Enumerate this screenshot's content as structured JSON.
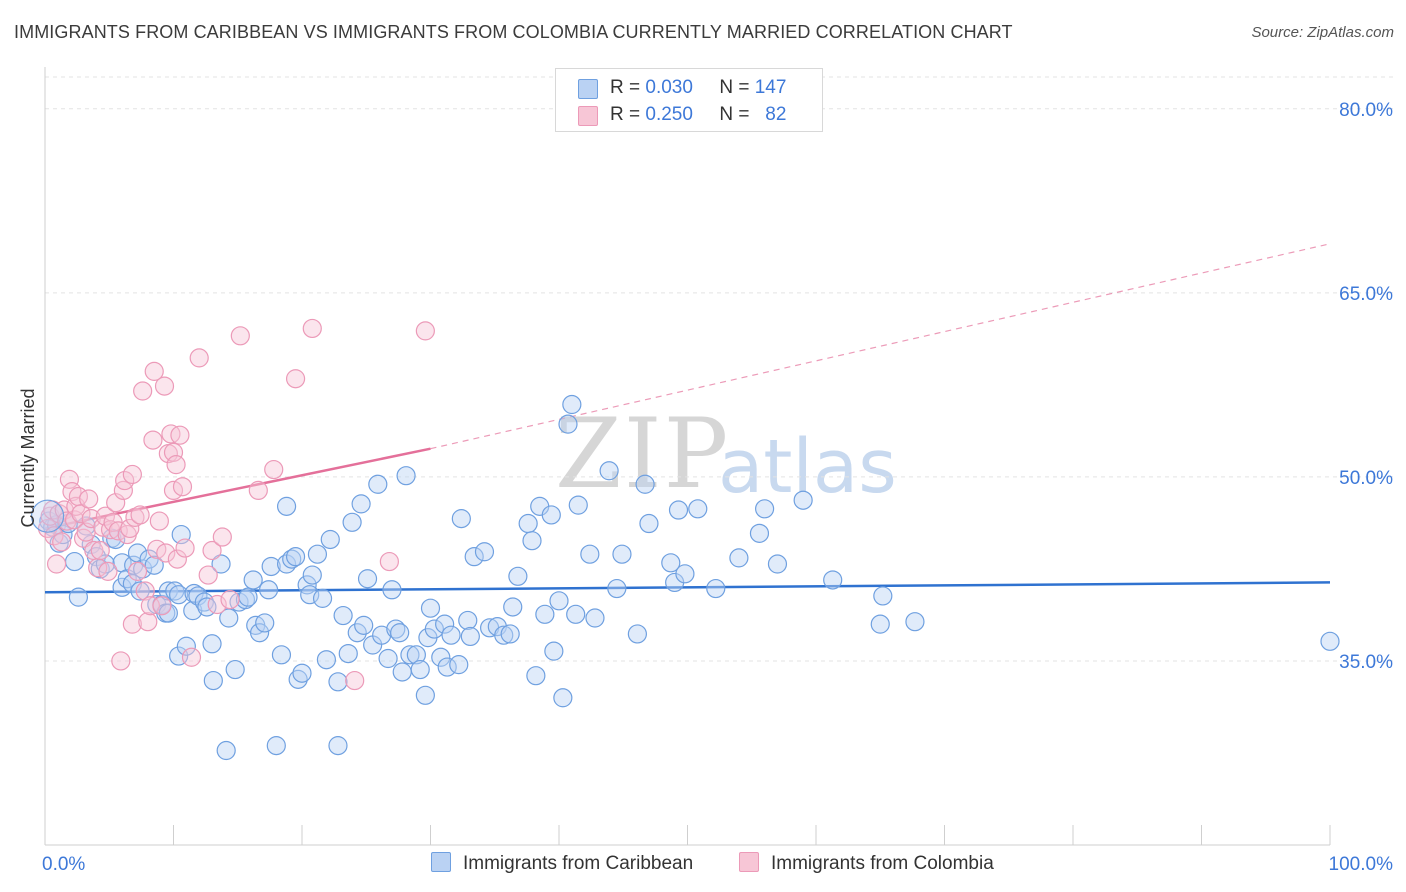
{
  "header": {
    "title": "IMMIGRANTS FROM CARIBBEAN VS IMMIGRANTS FROM COLOMBIA CURRENTLY MARRIED CORRELATION CHART",
    "source": "Source: ZipAtlas.com"
  },
  "watermark": {
    "zip": "ZIP",
    "atlas": "atlas"
  },
  "legend_top": [
    {
      "r_label": "R =",
      "r_value": "0.030",
      "n_label": "N =",
      "n_value": "147",
      "color": "#6fa0e0"
    },
    {
      "r_label": "R =",
      "r_value": "0.250",
      "n_label": "N =",
      "n_value": "82",
      "color": "#ef8fb0"
    }
  ],
  "colors": {
    "blue_fill": "#bad2f3",
    "blue_stroke": "#6fa0e0",
    "blue_line": "#2f72d0",
    "pink_fill": "#f7c6d6",
    "pink_stroke": "#ec9ab8",
    "pink_line": "#e4709a",
    "grid": "#e3e3e3",
    "tick_text": "#3d78d8"
  },
  "chart_data": {
    "type": "scatter",
    "title": "IMMIGRANTS FROM CARIBBEAN VS IMMIGRANTS FROM COLOMBIA CURRENTLY MARRIED CORRELATION CHART",
    "xlabel": "",
    "ylabel": "Currently Married",
    "x_tick_labels": [
      "0.0%",
      "100.0%"
    ],
    "y_tick_labels": [
      "35.0%",
      "50.0%",
      "65.0%",
      "80.0%"
    ],
    "y_ticks": [
      35,
      50,
      65,
      80
    ],
    "xlim": [
      0,
      100
    ],
    "ylim": [
      20,
      83
    ],
    "grid": true,
    "legend_position": "bottom",
    "series": [
      {
        "name": "Immigrants from Caribbean",
        "color": "#6fa0e0",
        "trend": {
          "x": [
            0,
            100
          ],
          "y": [
            40.6,
            41.4
          ],
          "dashed_extension": false
        },
        "points": [
          [
            0.3,
            46.4
          ],
          [
            0.6,
            45.9
          ],
          [
            0.9,
            46.1
          ],
          [
            1.1,
            44.6
          ],
          [
            1.4,
            45.3
          ],
          [
            1.8,
            46.2
          ],
          [
            2.3,
            43.1
          ],
          [
            2.6,
            40.2
          ],
          [
            3.2,
            46.0
          ],
          [
            3.6,
            44.5
          ],
          [
            4.0,
            43.5
          ],
          [
            4.3,
            42.5
          ],
          [
            4.7,
            42.9
          ],
          [
            5.2,
            45.0
          ],
          [
            5.5,
            44.9
          ],
          [
            6.0,
            43.0
          ],
          [
            6.0,
            41.0
          ],
          [
            6.4,
            41.7
          ],
          [
            6.8,
            41.3
          ],
          [
            6.9,
            42.8
          ],
          [
            7.2,
            43.8
          ],
          [
            7.4,
            40.7
          ],
          [
            7.6,
            42.5
          ],
          [
            8.1,
            43.3
          ],
          [
            8.5,
            42.8
          ],
          [
            8.7,
            39.6
          ],
          [
            9.1,
            39.6
          ],
          [
            9.4,
            38.9
          ],
          [
            9.6,
            38.9
          ],
          [
            9.6,
            40.7
          ],
          [
            10.1,
            40.7
          ],
          [
            10.4,
            40.4
          ],
          [
            10.4,
            35.4
          ],
          [
            10.6,
            45.3
          ],
          [
            11.0,
            36.2
          ],
          [
            11.5,
            39.1
          ],
          [
            11.6,
            40.5
          ],
          [
            11.9,
            40.3
          ],
          [
            12.4,
            39.8
          ],
          [
            12.6,
            39.4
          ],
          [
            13.0,
            36.4
          ],
          [
            13.1,
            33.4
          ],
          [
            13.7,
            42.9
          ],
          [
            14.1,
            27.7
          ],
          [
            14.3,
            38.5
          ],
          [
            14.8,
            34.3
          ],
          [
            15.1,
            39.8
          ],
          [
            15.6,
            40.0
          ],
          [
            15.8,
            40.2
          ],
          [
            16.2,
            41.6
          ],
          [
            16.4,
            37.9
          ],
          [
            16.7,
            37.3
          ],
          [
            17.1,
            38.1
          ],
          [
            17.4,
            40.8
          ],
          [
            17.6,
            42.7
          ],
          [
            18.0,
            28.1
          ],
          [
            18.4,
            35.5
          ],
          [
            18.8,
            47.6
          ],
          [
            18.8,
            42.9
          ],
          [
            19.2,
            43.3
          ],
          [
            19.5,
            43.5
          ],
          [
            19.7,
            33.5
          ],
          [
            20.0,
            34.0
          ],
          [
            20.4,
            41.2
          ],
          [
            20.6,
            40.4
          ],
          [
            20.8,
            42.0
          ],
          [
            21.2,
            43.7
          ],
          [
            21.6,
            40.1
          ],
          [
            21.9,
            35.1
          ],
          [
            22.2,
            44.9
          ],
          [
            22.8,
            28.1
          ],
          [
            22.8,
            33.3
          ],
          [
            23.2,
            38.7
          ],
          [
            23.6,
            35.6
          ],
          [
            23.9,
            46.3
          ],
          [
            24.3,
            37.3
          ],
          [
            24.6,
            47.8
          ],
          [
            24.8,
            37.9
          ],
          [
            25.1,
            41.7
          ],
          [
            25.5,
            36.3
          ],
          [
            25.9,
            49.4
          ],
          [
            26.2,
            37.1
          ],
          [
            26.7,
            35.2
          ],
          [
            27.0,
            40.8
          ],
          [
            27.3,
            37.6
          ],
          [
            27.6,
            37.3
          ],
          [
            27.8,
            34.1
          ],
          [
            28.1,
            50.1
          ],
          [
            28.4,
            35.5
          ],
          [
            28.9,
            35.5
          ],
          [
            29.2,
            34.3
          ],
          [
            29.6,
            32.2
          ],
          [
            29.8,
            36.9
          ],
          [
            30.0,
            39.3
          ],
          [
            30.3,
            37.6
          ],
          [
            30.8,
            35.3
          ],
          [
            31.1,
            38.0
          ],
          [
            31.3,
            34.5
          ],
          [
            31.6,
            37.1
          ],
          [
            32.2,
            34.7
          ],
          [
            32.4,
            46.6
          ],
          [
            32.9,
            38.3
          ],
          [
            33.1,
            37.0
          ],
          [
            33.4,
            43.5
          ],
          [
            34.2,
            43.9
          ],
          [
            34.6,
            37.7
          ],
          [
            35.2,
            37.8
          ],
          [
            35.7,
            37.1
          ],
          [
            36.2,
            37.2
          ],
          [
            36.4,
            39.4
          ],
          [
            36.8,
            41.9
          ],
          [
            37.6,
            46.2
          ],
          [
            37.9,
            44.8
          ],
          [
            38.2,
            33.8
          ],
          [
            38.5,
            47.6
          ],
          [
            38.9,
            38.8
          ],
          [
            39.4,
            46.9
          ],
          [
            39.6,
            35.8
          ],
          [
            40.0,
            39.9
          ],
          [
            40.3,
            32.0
          ],
          [
            40.7,
            54.3
          ],
          [
            41.0,
            55.9
          ],
          [
            41.3,
            38.8
          ],
          [
            41.5,
            47.7
          ],
          [
            42.4,
            43.7
          ],
          [
            42.8,
            38.5
          ],
          [
            43.9,
            50.5
          ],
          [
            44.5,
            40.9
          ],
          [
            44.9,
            43.7
          ],
          [
            46.1,
            37.2
          ],
          [
            46.7,
            49.4
          ],
          [
            47.0,
            46.2
          ],
          [
            48.7,
            43.0
          ],
          [
            49.0,
            41.4
          ],
          [
            49.3,
            47.3
          ],
          [
            49.8,
            42.1
          ],
          [
            50.8,
            47.4
          ],
          [
            52.2,
            40.9
          ],
          [
            54.0,
            43.4
          ],
          [
            55.6,
            45.4
          ],
          [
            56.0,
            47.4
          ],
          [
            57.0,
            42.9
          ],
          [
            59.0,
            48.1
          ],
          [
            61.3,
            41.6
          ],
          [
            65.0,
            38.0
          ],
          [
            65.2,
            40.3
          ],
          [
            67.7,
            38.2
          ],
          [
            100.0,
            36.6
          ]
        ]
      },
      {
        "name": "Immigrants from Colombia",
        "color": "#ec9ab8",
        "trend": {
          "x": [
            0,
            30
          ],
          "y": [
            45.8,
            52.3
          ],
          "dashed_extension": true,
          "dashed_to": [
            100,
            69.0
          ]
        },
        "points": [
          [
            0.2,
            45.8
          ],
          [
            0.4,
            46.8
          ],
          [
            0.6,
            47.3
          ],
          [
            0.7,
            45.2
          ],
          [
            0.9,
            42.9
          ],
          [
            1.1,
            47.0
          ],
          [
            1.3,
            44.7
          ],
          [
            1.5,
            47.3
          ],
          [
            1.7,
            46.4
          ],
          [
            1.9,
            49.8
          ],
          [
            2.1,
            48.8
          ],
          [
            2.3,
            46.5
          ],
          [
            2.4,
            47.6
          ],
          [
            2.6,
            48.4
          ],
          [
            2.8,
            47.0
          ],
          [
            3.0,
            45.0
          ],
          [
            3.2,
            45.5
          ],
          [
            3.4,
            48.2
          ],
          [
            3.6,
            46.6
          ],
          [
            3.8,
            44.0
          ],
          [
            4.1,
            42.6
          ],
          [
            4.3,
            44.0
          ],
          [
            4.5,
            45.9
          ],
          [
            4.7,
            46.8
          ],
          [
            4.9,
            42.3
          ],
          [
            5.1,
            45.7
          ],
          [
            5.3,
            46.3
          ],
          [
            5.5,
            47.9
          ],
          [
            5.7,
            45.6
          ],
          [
            5.9,
            35.0
          ],
          [
            6.1,
            48.9
          ],
          [
            6.2,
            49.7
          ],
          [
            6.4,
            45.3
          ],
          [
            6.6,
            45.8
          ],
          [
            6.8,
            50.2
          ],
          [
            6.8,
            38.0
          ],
          [
            7.0,
            46.7
          ],
          [
            7.2,
            42.3
          ],
          [
            7.4,
            46.9
          ],
          [
            7.6,
            57.0
          ],
          [
            7.8,
            40.7
          ],
          [
            8.0,
            38.2
          ],
          [
            8.2,
            39.5
          ],
          [
            8.4,
            53.0
          ],
          [
            8.5,
            58.6
          ],
          [
            8.7,
            44.1
          ],
          [
            8.9,
            46.4
          ],
          [
            9.1,
            39.5
          ],
          [
            9.3,
            57.4
          ],
          [
            9.4,
            43.8
          ],
          [
            9.6,
            51.9
          ],
          [
            9.8,
            53.5
          ],
          [
            10.0,
            48.9
          ],
          [
            10.0,
            52.0
          ],
          [
            10.2,
            51.0
          ],
          [
            10.3,
            43.3
          ],
          [
            10.5,
            53.4
          ],
          [
            10.7,
            49.2
          ],
          [
            10.9,
            44.2
          ],
          [
            11.4,
            35.3
          ],
          [
            12.0,
            59.7
          ],
          [
            12.7,
            42.0
          ],
          [
            13.0,
            44.0
          ],
          [
            13.4,
            39.6
          ],
          [
            13.8,
            45.1
          ],
          [
            14.4,
            40.0
          ],
          [
            15.2,
            61.5
          ],
          [
            16.6,
            48.9
          ],
          [
            17.8,
            50.6
          ],
          [
            19.5,
            58.0
          ],
          [
            20.8,
            62.1
          ],
          [
            24.1,
            33.4
          ],
          [
            26.8,
            43.1
          ],
          [
            29.6,
            61.9
          ]
        ]
      }
    ]
  }
}
